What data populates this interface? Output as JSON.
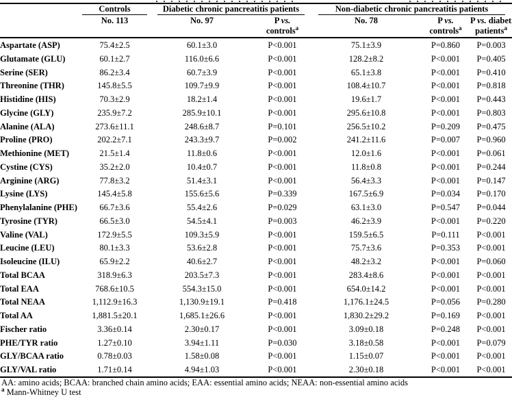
{
  "table": {
    "header": {
      "group_controls": "Controls",
      "group_diabetic": "Diabetic chronic pancreatitis patients",
      "group_nondiabetic": "Non-diabetic chronic pancreatitis patients",
      "n_controls": "No. 113",
      "n_diabetic": "No. 97",
      "n_nondiabetic": "No. 78",
      "p_label": "P ",
      "vs_label": "vs.",
      "diabetic_suffix": " diabetic",
      "controls_word": "controls",
      "patients_word": "patients",
      "marker": "a"
    },
    "rows": [
      {
        "label": "Aspartate (ASP)",
        "controls": "75.4±2.5",
        "diabetic": "60.1±3.0",
        "p_diab_vs_ctrl": "P<0.001",
        "nondiabetic": "75.1±3.9",
        "p_nd_vs_ctrl": "P=0.860",
        "p_nd_vs_diab": "P=0.003"
      },
      {
        "label": "Glutamate (GLU)",
        "controls": "60.1±2.7",
        "diabetic": "116.0±6.6",
        "p_diab_vs_ctrl": "P<0.001",
        "nondiabetic": "128.2±8.2",
        "p_nd_vs_ctrl": "P<0.001",
        "p_nd_vs_diab": "P=0.405"
      },
      {
        "label": "Serine (SER)",
        "controls": "86.2±3.4",
        "diabetic": "60.7±3.9",
        "p_diab_vs_ctrl": "P<0.001",
        "nondiabetic": "65.1±3.8",
        "p_nd_vs_ctrl": "P<0.001",
        "p_nd_vs_diab": "P=0.410"
      },
      {
        "label": "Threonine (THR)",
        "controls": "145.8±5.5",
        "diabetic": "109.7±9.9",
        "p_diab_vs_ctrl": "P<0.001",
        "nondiabetic": "108.4±10.7",
        "p_nd_vs_ctrl": "P<0.001",
        "p_nd_vs_diab": "P=0.818"
      },
      {
        "label": "Histidine (HIS)",
        "controls": "70.3±2.9",
        "diabetic": "18.2±1.4",
        "p_diab_vs_ctrl": "P<0.001",
        "nondiabetic": "19.6±1.7",
        "p_nd_vs_ctrl": "P<0.001",
        "p_nd_vs_diab": "P=0.443"
      },
      {
        "label": "Glycine (GLY)",
        "controls": "235.9±7.2",
        "diabetic": "285.9±10.1",
        "p_diab_vs_ctrl": "P<0.001",
        "nondiabetic": "295.6±10.8",
        "p_nd_vs_ctrl": "P<0.001",
        "p_nd_vs_diab": "P=0.803"
      },
      {
        "label": "Alanine (ALA)",
        "controls": "273.6±11.1",
        "diabetic": "248.6±8.7",
        "p_diab_vs_ctrl": "P=0.101",
        "nondiabetic": "256.5±10.2",
        "p_nd_vs_ctrl": "P=0.209",
        "p_nd_vs_diab": "P=0.475"
      },
      {
        "label": "Proline (PRO)",
        "controls": "202.2±7.1",
        "diabetic": "243.3±9.7",
        "p_diab_vs_ctrl": "P=0.002",
        "nondiabetic": "241.2±11.6",
        "p_nd_vs_ctrl": "P=0.007",
        "p_nd_vs_diab": "P=0.960"
      },
      {
        "label": "Methionine (MET)",
        "controls": "21.5±1.4",
        "diabetic": "11.8±0.6",
        "p_diab_vs_ctrl": "P<0.001",
        "nondiabetic": "12.0±1.6",
        "p_nd_vs_ctrl": "P<0.001",
        "p_nd_vs_diab": "P=0.061"
      },
      {
        "label": "Cystine (CYS)",
        "controls": "35.2±2.0",
        "diabetic": "10.4±0.7",
        "p_diab_vs_ctrl": "P<0.001",
        "nondiabetic": "11.8±0.8",
        "p_nd_vs_ctrl": "P<0.001",
        "p_nd_vs_diab": "P=0.244"
      },
      {
        "label": "Arginine (ARG)",
        "controls": "77.8±3.2",
        "diabetic": "51.4±3.1",
        "p_diab_vs_ctrl": "P<0.001",
        "nondiabetic": "56.4±3.3",
        "p_nd_vs_ctrl": "P<0.001",
        "p_nd_vs_diab": "P=0.147"
      },
      {
        "label": "Lysine (LYS)",
        "controls": "145.4±5.8",
        "diabetic": "155.6±5.6",
        "p_diab_vs_ctrl": "P=0.339",
        "nondiabetic": "167.5±6.9",
        "p_nd_vs_ctrl": "P=0.034",
        "p_nd_vs_diab": "P=0.170"
      },
      {
        "label": "Phenylalanine (PHE)",
        "controls": "66.7±3.6",
        "diabetic": "55.4±2.6",
        "p_diab_vs_ctrl": "P=0.029",
        "nondiabetic": "63.1±3.0",
        "p_nd_vs_ctrl": "P=0.547",
        "p_nd_vs_diab": "P=0.044"
      },
      {
        "label": "Tyrosine (TYR)",
        "controls": "66.5±3.0",
        "diabetic": "54.5±4.1",
        "p_diab_vs_ctrl": "P=0.003",
        "nondiabetic": "46.2±3.9",
        "p_nd_vs_ctrl": "P<0.001",
        "p_nd_vs_diab": "P=0.220"
      },
      {
        "label": "Valine (VAL)",
        "controls": "172.9±5.5",
        "diabetic": "109.3±5.9",
        "p_diab_vs_ctrl": "P<0.001",
        "nondiabetic": "159.5±6.5",
        "p_nd_vs_ctrl": "P=0.111",
        "p_nd_vs_diab": "P<0.001"
      },
      {
        "label": "Leucine (LEU)",
        "controls": "80.1±3.3",
        "diabetic": "53.6±2.8",
        "p_diab_vs_ctrl": "P<0.001",
        "nondiabetic": "75.7±3.6",
        "p_nd_vs_ctrl": "P=0.353",
        "p_nd_vs_diab": "P<0.001"
      },
      {
        "label": "Isoleucine (ILU)",
        "controls": "65.9±2.2",
        "diabetic": "40.6±2.7",
        "p_diab_vs_ctrl": "P<0.001",
        "nondiabetic": "48.2±3.2",
        "p_nd_vs_ctrl": "P<0.001",
        "p_nd_vs_diab": "P=0.060"
      },
      {
        "label": "Total BCAA",
        "controls": "318.9±6.3",
        "diabetic": "203.5±7.3",
        "p_diab_vs_ctrl": "P<0.001",
        "nondiabetic": "283.4±8.6",
        "p_nd_vs_ctrl": "P<0.001",
        "p_nd_vs_diab": "P<0.001"
      },
      {
        "label": "Total EAA",
        "controls": "768.6±10.5",
        "diabetic": "554.3±15.0",
        "p_diab_vs_ctrl": "P<0.001",
        "nondiabetic": "654.0±14.2",
        "p_nd_vs_ctrl": "P<0.001",
        "p_nd_vs_diab": "P<0.001"
      },
      {
        "label": "Total NEAA",
        "controls": "1,112.9±16.3",
        "diabetic": "1,130.9±19.1",
        "p_diab_vs_ctrl": "P=0.418",
        "nondiabetic": "1,176.1±24.5",
        "p_nd_vs_ctrl": "P=0.056",
        "p_nd_vs_diab": "P=0.280"
      },
      {
        "label": "Total AA",
        "controls": "1,881.5±20.1",
        "diabetic": "1,685.1±26.6",
        "p_diab_vs_ctrl": "P<0.001",
        "nondiabetic": "1,830.2±29.2",
        "p_nd_vs_ctrl": "P=0.169",
        "p_nd_vs_diab": "P<0.001"
      },
      {
        "label": "Fischer ratio",
        "controls": "3.36±0.14",
        "diabetic": "2.30±0.17",
        "p_diab_vs_ctrl": "P<0.001",
        "nondiabetic": "3.09±0.18",
        "p_nd_vs_ctrl": "P=0.248",
        "p_nd_vs_diab": "P<0.001"
      },
      {
        "label": "PHE/TYR ratio",
        "controls": "1.27±0.10",
        "diabetic": "3.94±1.11",
        "p_diab_vs_ctrl": "P=0.030",
        "nondiabetic": "3.18±0.58",
        "p_nd_vs_ctrl": "P<0.001",
        "p_nd_vs_diab": "P=0.079"
      },
      {
        "label": "GLY/BCAA ratio",
        "controls": "0.78±0.03",
        "diabetic": "1.58±0.08",
        "p_diab_vs_ctrl": "P<0.001",
        "nondiabetic": "1.15±0.07",
        "p_nd_vs_ctrl": "P<0.001",
        "p_nd_vs_diab": "P<0.001"
      },
      {
        "label": "GLY/VAL ratio",
        "controls": "1.71±0.14",
        "diabetic": "4.94±1.03",
        "p_diab_vs_ctrl": "P<0.001",
        "nondiabetic": "2.30±0.18",
        "p_nd_vs_ctrl": "P<0.001",
        "p_nd_vs_diab": "P<0.001"
      }
    ]
  },
  "footnotes": {
    "abbreviations": "AA: amino acids; BCAA: branched chain amino acids; EAA: essential amino acids; NEAA: non-essential amino acids",
    "marker": "a",
    "test": "Mann-Whitney U test"
  }
}
